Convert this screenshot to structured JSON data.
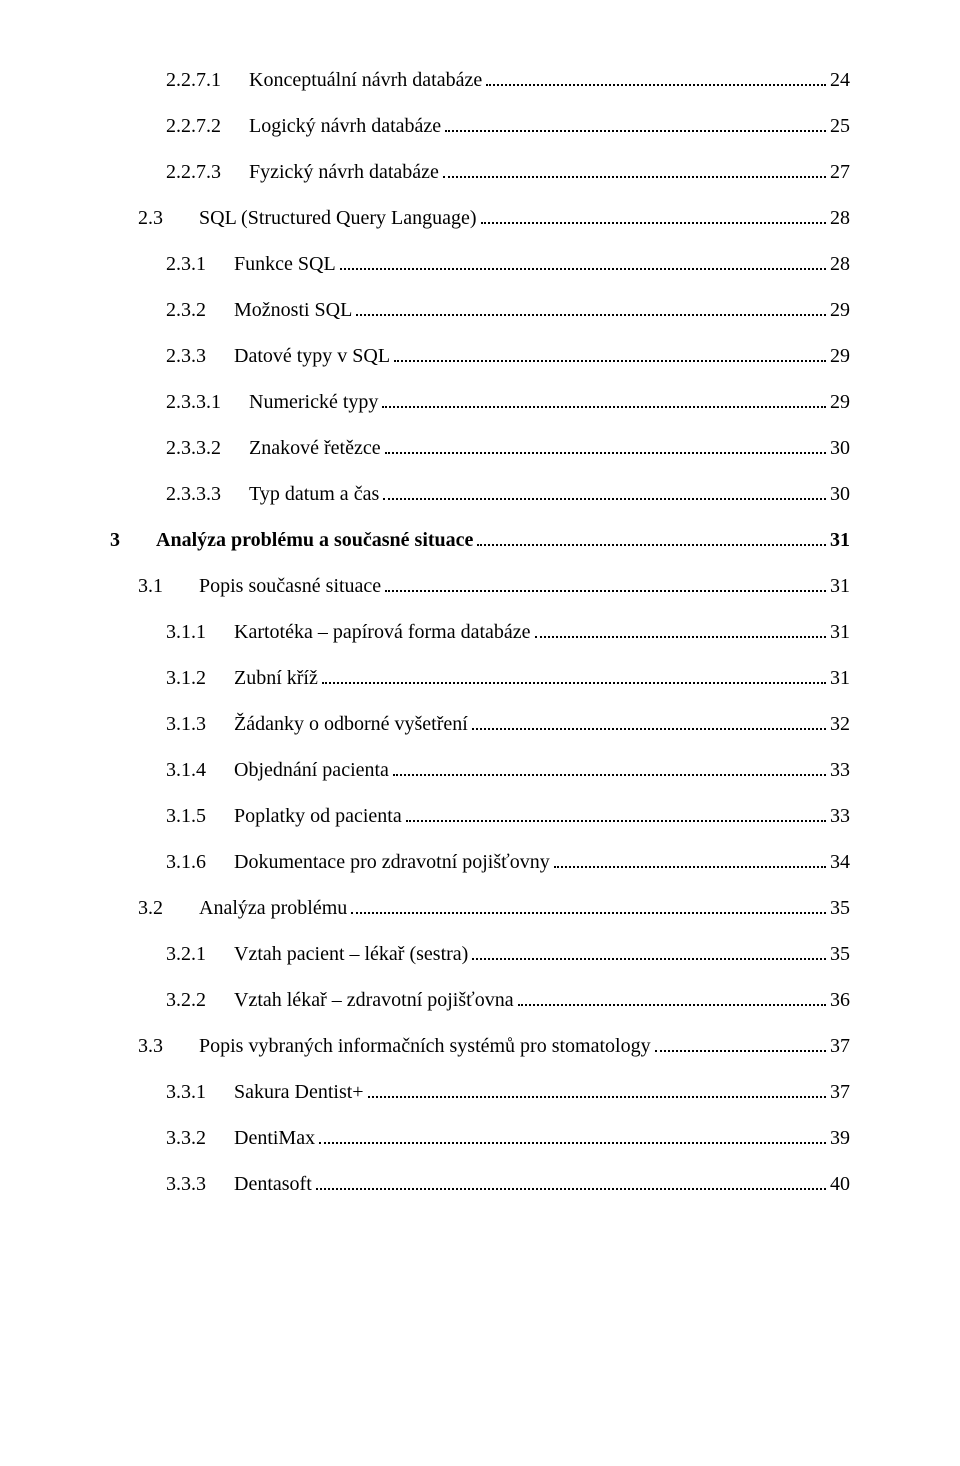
{
  "toc": [
    {
      "indent": 2,
      "bold": false,
      "num": "2.2.7.1",
      "gap": "med",
      "title": "Konceptuální návrh databáze",
      "page": "24"
    },
    {
      "indent": 2,
      "bold": false,
      "num": "2.2.7.2",
      "gap": "med",
      "title": "Logický návrh databáze",
      "page": "25"
    },
    {
      "indent": 2,
      "bold": false,
      "num": "2.2.7.3",
      "gap": "med",
      "title": "Fyzický návrh databáze",
      "page": "27"
    },
    {
      "indent": 1,
      "bold": false,
      "num": "2.3",
      "gap": "big",
      "title": "SQL (Structured Query Language)",
      "page": "28"
    },
    {
      "indent": 2,
      "bold": false,
      "num": "2.3.1",
      "gap": "med",
      "title": "Funkce SQL",
      "page": "28"
    },
    {
      "indent": 2,
      "bold": false,
      "num": "2.3.2",
      "gap": "med",
      "title": "Možnosti SQL",
      "page": "29"
    },
    {
      "indent": 2,
      "bold": false,
      "num": "2.3.3",
      "gap": "med",
      "title": "Datové typy v SQL",
      "page": "29"
    },
    {
      "indent": 2,
      "bold": false,
      "num": "2.3.3.1",
      "gap": "med",
      "title": "Numerické typy",
      "page": "29"
    },
    {
      "indent": 2,
      "bold": false,
      "num": "2.3.3.2",
      "gap": "med",
      "title": "Znakové řetězce",
      "page": "30"
    },
    {
      "indent": 2,
      "bold": false,
      "num": "2.3.3.3",
      "gap": "med",
      "title": "Typ datum a čas",
      "page": "30"
    },
    {
      "indent": 0,
      "bold": true,
      "num": "3",
      "gap": "big",
      "title": "Analýza problému a současné situace",
      "page": "31"
    },
    {
      "indent": 1,
      "bold": false,
      "num": "3.1",
      "gap": "big",
      "title": "Popis současné situace",
      "page": "31"
    },
    {
      "indent": 2,
      "bold": false,
      "num": "3.1.1",
      "gap": "med",
      "title": "Kartotéka – papírová forma databáze",
      "page": "31"
    },
    {
      "indent": 2,
      "bold": false,
      "num": "3.1.2",
      "gap": "med",
      "title": "Zubní kříž",
      "page": "31"
    },
    {
      "indent": 2,
      "bold": false,
      "num": "3.1.3",
      "gap": "med",
      "title": "Žádanky o odborné vyšetření",
      "page": "32"
    },
    {
      "indent": 2,
      "bold": false,
      "num": "3.1.4",
      "gap": "med",
      "title": "Objednání pacienta",
      "page": "33"
    },
    {
      "indent": 2,
      "bold": false,
      "num": "3.1.5",
      "gap": "med",
      "title": "Poplatky od pacienta",
      "page": "33"
    },
    {
      "indent": 2,
      "bold": false,
      "num": "3.1.6",
      "gap": "med",
      "title": "Dokumentace pro zdravotní pojišťovny",
      "page": "34"
    },
    {
      "indent": 1,
      "bold": false,
      "num": "3.2",
      "gap": "big",
      "title": "Analýza problému",
      "page": "35"
    },
    {
      "indent": 2,
      "bold": false,
      "num": "3.2.1",
      "gap": "med",
      "title": "Vztah pacient – lékař (sestra)",
      "page": "35"
    },
    {
      "indent": 2,
      "bold": false,
      "num": "3.2.2",
      "gap": "med",
      "title": "Vztah lékař – zdravotní pojišťovna",
      "page": "36"
    },
    {
      "indent": 1,
      "bold": false,
      "num": "3.3",
      "gap": "big",
      "title": "Popis vybraných informačních systémů pro stomatology",
      "page": "37"
    },
    {
      "indent": 2,
      "bold": false,
      "num": "3.3.1",
      "gap": "med",
      "title": "Sakura Dentist+",
      "page": "37"
    },
    {
      "indent": 2,
      "bold": false,
      "num": "3.3.2",
      "gap": "med",
      "title": "DentiMax",
      "page": "39"
    },
    {
      "indent": 2,
      "bold": false,
      "num": "3.3.3",
      "gap": "med",
      "title": "Dentasoft",
      "page": "40"
    }
  ]
}
